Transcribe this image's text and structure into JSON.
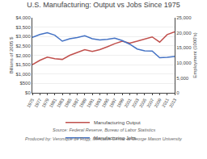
{
  "chart_data": {
    "type": "line",
    "title": "U.S. Manufacturing: Output vs Jobs Since 1975",
    "x": [
      1975,
      1977,
      1979,
      1981,
      1983,
      1985,
      1987,
      1989,
      1991,
      1993,
      1995,
      1997,
      1999,
      2001,
      2003,
      2005,
      2007,
      2009,
      2011,
      2013
    ],
    "series": [
      {
        "name": "Manufacturing Output",
        "color": "#c0504d",
        "values": [
          1500,
          1730,
          1900,
          1820,
          1780,
          2000,
          2150,
          2300,
          2200,
          2300,
          2450,
          2620,
          2750,
          2650,
          2750,
          2880,
          2980,
          2700,
          3100,
          3250
        ]
      },
      {
        "name": "Manufacturing Jobs",
        "color": "#4472c4",
        "axis": "y2",
        "values": [
          18500,
          19400,
          20000,
          19200,
          17200,
          18000,
          18400,
          19000,
          18000,
          17600,
          17800,
          18200,
          17400,
          16200,
          14600,
          14000,
          13900,
          11700,
          11800,
          12100
        ]
      }
    ],
    "ylabel": "Billions of 2005 $",
    "y2label": "Employment (1000's)",
    "xlim": [
      1975,
      2013
    ],
    "xticks": [
      1975,
      1977,
      1979,
      1981,
      1983,
      1985,
      1987,
      1989,
      1991,
      1993,
      1995,
      1997,
      1999,
      2001,
      2003,
      2005,
      2007,
      2009,
      2011,
      2013
    ],
    "ylim": [
      0,
      4000
    ],
    "yticks": [
      {
        "value": 0,
        "label": "$0"
      },
      {
        "value": 500,
        "label": "$500"
      },
      {
        "value": 1000,
        "label": "$1,000"
      },
      {
        "value": 1500,
        "label": "$1,500"
      },
      {
        "value": 2000,
        "label": "$2,000"
      },
      {
        "value": 2500,
        "label": "$2,500"
      },
      {
        "value": 3000,
        "label": "$3,000"
      },
      {
        "value": 3500,
        "label": "$3,500"
      },
      {
        "value": 4000,
        "label": "$4,000"
      }
    ],
    "y2lim": [
      0,
      25000
    ],
    "y2ticks": [
      0,
      {
        "value": 5000,
        "label": "5,000"
      },
      {
        "value": 10000,
        "label": "10,000"
      },
      {
        "value": 15000,
        "label": "15,000"
      },
      {
        "value": 20000,
        "label": "20,000"
      },
      {
        "value": 25000,
        "label": "25,000"
      }
    ],
    "grid": true,
    "legend": "bottom",
    "annotations": [
      "Source: Federal Reserve, Bureau of Labor Statistics",
      "Produced by: Veronique de Rugy, Mercatus Center at George Mason University"
    ]
  }
}
